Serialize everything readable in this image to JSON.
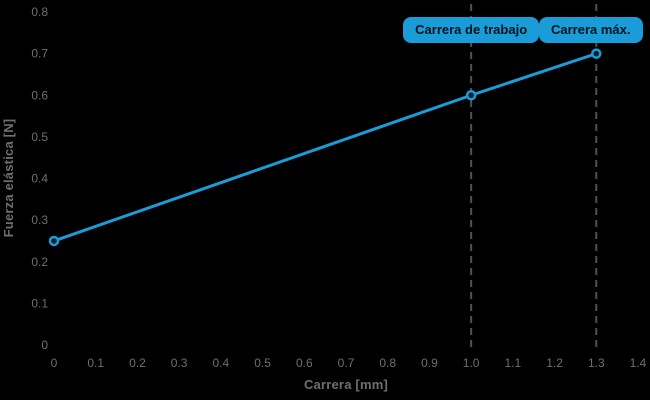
{
  "colors": {
    "background": "#000000",
    "line": "#1a9cd8",
    "marker_fill": "#041d29",
    "dashed_line": "#515151",
    "axis_text": "#6f6f6f",
    "badge_bg": "#1a9cd8",
    "badge_text": "#03131c"
  },
  "chart_data": {
    "type": "line",
    "title": "",
    "xlabel": "Carrera [mm]",
    "ylabel": "Fuerza elástica [N]",
    "xlim": [
      0,
      1.4
    ],
    "ylim": [
      0,
      0.8
    ],
    "grid": false,
    "legend": "none",
    "x_ticks": [
      "0",
      "0.1",
      "0.2",
      "0.3",
      "0.4",
      "0.5",
      "0.6",
      "0.7",
      "0.8",
      "0.9",
      "1.0",
      "1.1",
      "1.2",
      "1.3",
      "1.4"
    ],
    "y_ticks": [
      "0",
      "0.1",
      "0.2",
      "0.3",
      "0.4",
      "0.5",
      "0.6",
      "0.7",
      "0.8"
    ],
    "series": [
      {
        "name": "Fuerza elástica",
        "color": "#1a9cd8",
        "points": [
          [
            0,
            0.25
          ],
          [
            1.0,
            0.6
          ],
          [
            1.3,
            0.7
          ]
        ]
      }
    ],
    "annotations": [
      {
        "label": "Carrera de trabajo",
        "x": 1.0,
        "style": "dashed-vline-badge"
      },
      {
        "label": "Carrera máx.",
        "x": 1.3,
        "style": "dashed-vline-badge"
      }
    ]
  }
}
